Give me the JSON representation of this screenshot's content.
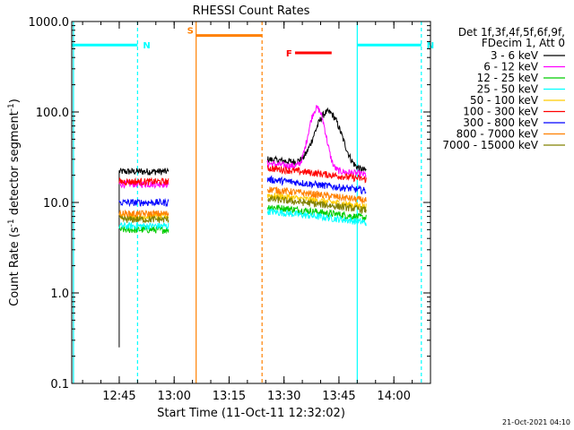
{
  "chart_data": {
    "type": "line",
    "title": "RHESSI Count Rates",
    "xlabel": "Start Time (11-Oct-11 12:32:02)",
    "ylabel_parts": [
      "Count Rate (s",
      "-1",
      " detector segment",
      "-1",
      ")"
    ],
    "y_scale": "log",
    "ylim": [
      0.1,
      1000.0
    ],
    "y_ticks": [
      {
        "value": 0.1,
        "label": "0.1"
      },
      {
        "value": 1.0,
        "label": "1.0"
      },
      {
        "value": 10.0,
        "label": "10.0"
      },
      {
        "value": 100.0,
        "label": "100.0"
      },
      {
        "value": 1000.0,
        "label": "1000.0"
      }
    ],
    "xlim": [
      "12:32:02",
      "14:10:00"
    ],
    "x_ticks": [
      "12:45",
      "13:00",
      "13:15",
      "13:30",
      "13:45",
      "14:00"
    ],
    "legend_header": [
      "Det 1f,3f,4f,5f,6f,9f,",
      "FDecim 1, Att 0"
    ],
    "legend_position": "right",
    "series": [
      {
        "name": "3 - 6 keV",
        "color": "#000000",
        "seg1_level": 22,
        "seg2_level": 30,
        "seg1_start": 0.25,
        "peak": {
          "time": "13:42",
          "value": 100
        }
      },
      {
        "name": "6 - 12 keV",
        "color": "#ff00ff",
        "seg1_level": 16,
        "seg2_level": 27,
        "peak": {
          "time": "13:39",
          "value": 110
        }
      },
      {
        "name": "12 - 25 keV",
        "color": "#00cc00",
        "seg1_level": 5,
        "seg2_level": 9
      },
      {
        "name": "25 - 50 keV",
        "color": "#00ffff",
        "seg1_level": 5.5,
        "seg2_level": 8
      },
      {
        "name": "50 - 100 keV",
        "color": "#ffcc00",
        "seg1_level": 7,
        "seg2_level": 12
      },
      {
        "name": "100 - 300 keV",
        "color": "#ff0000",
        "seg1_level": 17,
        "seg2_level": 24
      },
      {
        "name": "300 - 800 keV",
        "color": "#0000ff",
        "seg1_level": 10,
        "seg2_level": 18
      },
      {
        "name": "800 - 7000 keV",
        "color": "#ff8000",
        "seg1_level": 7.5,
        "seg2_level": 14
      },
      {
        "name": "7000 - 15000 keV",
        "color": "#808000",
        "seg1_level": 6.5,
        "seg2_level": 11
      }
    ],
    "data_segments": [
      {
        "start": "12:45:00",
        "end": "12:58:30"
      },
      {
        "start": "13:25:30",
        "end": "13:52:30"
      }
    ],
    "intervals": [
      {
        "label": "N",
        "color": "#00ffff",
        "start": "12:32:02",
        "end": "12:50:00",
        "level": 550
      },
      {
        "label": "N",
        "color": "#00ffff",
        "start": "13:50:00",
        "end": "14:07:30",
        "level": 550
      },
      {
        "label": "S",
        "color": "#ff8000",
        "start": "13:06:00",
        "end": "13:24:00",
        "level": 700
      },
      {
        "label": "F",
        "color": "#ff0000",
        "start": "13:33:00",
        "end": "13:43:00",
        "level": 450
      }
    ],
    "vertical_markers": [
      {
        "time": "12:32:30",
        "color": "#00ffff",
        "style": "solid"
      },
      {
        "time": "12:50:00",
        "color": "#00ffff",
        "style": "dashed"
      },
      {
        "time": "13:06:00",
        "color": "#ff8000",
        "style": "solid"
      },
      {
        "time": "13:24:00",
        "color": "#ff8000",
        "style": "dashed"
      },
      {
        "time": "13:50:00",
        "color": "#00ffff",
        "style": "solid"
      },
      {
        "time": "14:07:30",
        "color": "#00ffff",
        "style": "dashed"
      }
    ],
    "footer_timestamp": "21-Oct-2021 04:10"
  }
}
